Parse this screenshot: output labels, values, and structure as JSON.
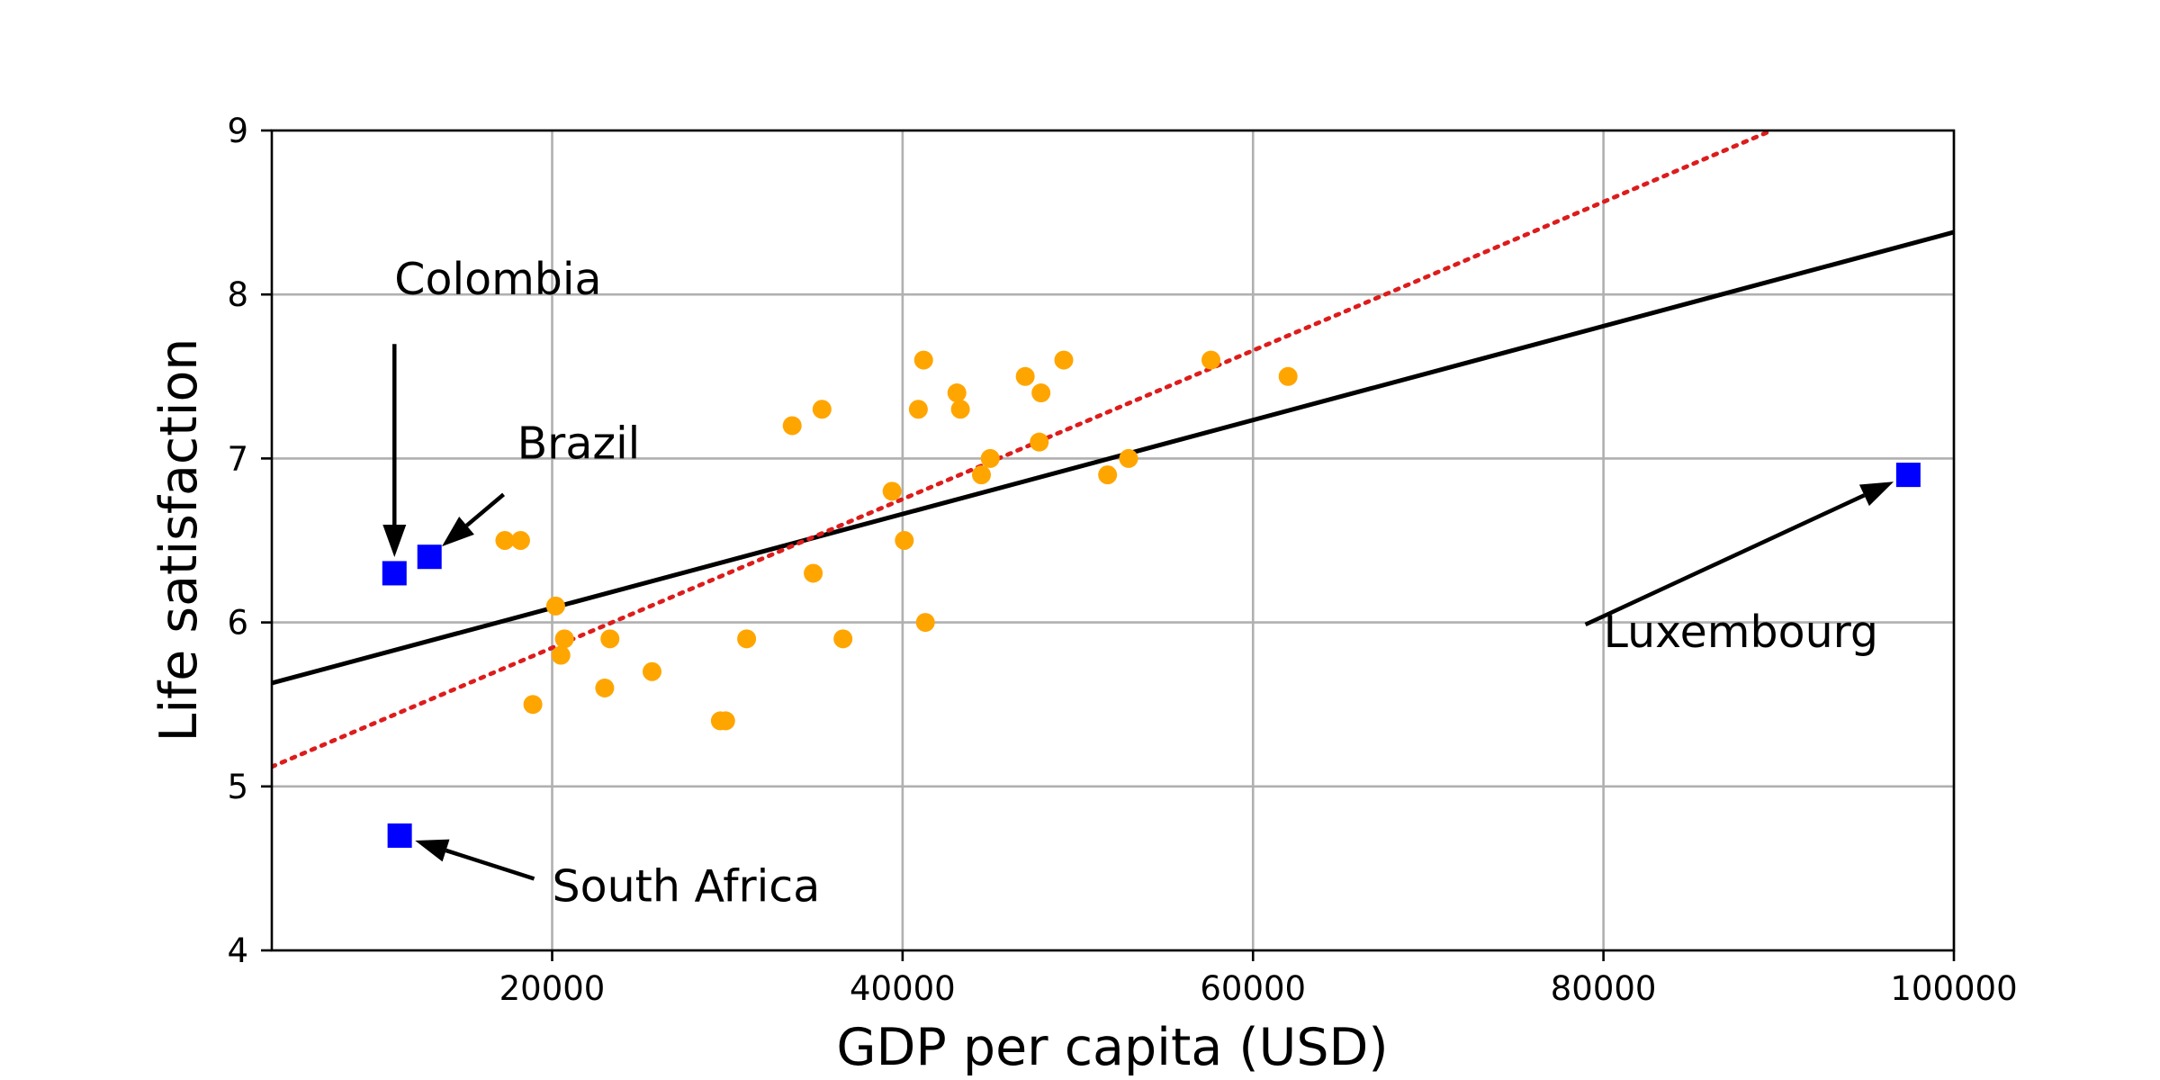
{
  "chart_data": {
    "type": "scatter",
    "title": "",
    "xlabel": "GDP per capita (USD)",
    "ylabel": "Life satisfaction",
    "xlim": [
      4000,
      100000
    ],
    "ylim": [
      4,
      9
    ],
    "xticks": [
      20000,
      40000,
      60000,
      80000,
      100000
    ],
    "xtick_labels": [
      "20000",
      "40000",
      "60000",
      "80000",
      "100000"
    ],
    "yticks": [
      4,
      5,
      6,
      7,
      8,
      9
    ],
    "ytick_labels": [
      "4",
      "5",
      "6",
      "7",
      "8",
      "9"
    ],
    "grid": true,
    "series": [
      {
        "kind": "scatter",
        "marker": "circle",
        "color": "#ffa500",
        "points": [
          [
            17300,
            6.5
          ],
          [
            18200,
            6.5
          ],
          [
            18900,
            5.5
          ],
          [
            20200,
            6.1
          ],
          [
            20500,
            5.8
          ],
          [
            20700,
            5.9
          ],
          [
            23000,
            5.6
          ],
          [
            23300,
            5.9
          ],
          [
            25700,
            5.7
          ],
          [
            29600,
            5.4
          ],
          [
            29900,
            5.4
          ],
          [
            31100,
            5.9
          ],
          [
            33700,
            7.2
          ],
          [
            34900,
            6.3
          ],
          [
            35400,
            7.3
          ],
          [
            36600,
            5.9
          ],
          [
            39400,
            6.8
          ],
          [
            40100,
            6.5
          ],
          [
            40900,
            7.3
          ],
          [
            41200,
            7.6
          ],
          [
            41300,
            6.0
          ],
          [
            43100,
            7.4
          ],
          [
            43300,
            7.3
          ],
          [
            44500,
            6.9
          ],
          [
            45000,
            7.0
          ],
          [
            47000,
            7.5
          ],
          [
            47800,
            7.1
          ],
          [
            47900,
            7.4
          ],
          [
            49200,
            7.6
          ],
          [
            51700,
            6.9
          ],
          [
            52900,
            7.0
          ],
          [
            57600,
            7.6
          ],
          [
            62000,
            7.5
          ]
        ]
      },
      {
        "kind": "scatter",
        "marker": "square",
        "color": "#0000ff",
        "points": [
          [
            11000,
            6.3
          ],
          [
            13000,
            6.4
          ],
          [
            11300,
            4.7
          ],
          [
            97400,
            6.9
          ]
        ]
      },
      {
        "kind": "line",
        "style": "solid",
        "color": "#000000",
        "x": [
          4000,
          100000
        ],
        "y": [
          5.63,
          8.38
        ]
      },
      {
        "kind": "line",
        "style": "dotted",
        "color": "#dd1c1c",
        "x": [
          4000,
          89600
        ],
        "y": [
          5.12,
          9.0
        ]
      }
    ],
    "annotations": [
      {
        "text": "Colombia",
        "point": [
          11000,
          6.3
        ],
        "text_at": [
          11000,
          8.0
        ]
      },
      {
        "text": "Brazil",
        "point": [
          13000,
          6.4
        ],
        "text_at": [
          18000,
          7.0
        ]
      },
      {
        "text": "South Africa",
        "point": [
          11300,
          4.7
        ],
        "text_at": [
          20000,
          4.3
        ]
      },
      {
        "text": "Luxembourg",
        "point": [
          97400,
          6.9
        ],
        "text_at": [
          80000,
          5.85
        ]
      }
    ]
  }
}
